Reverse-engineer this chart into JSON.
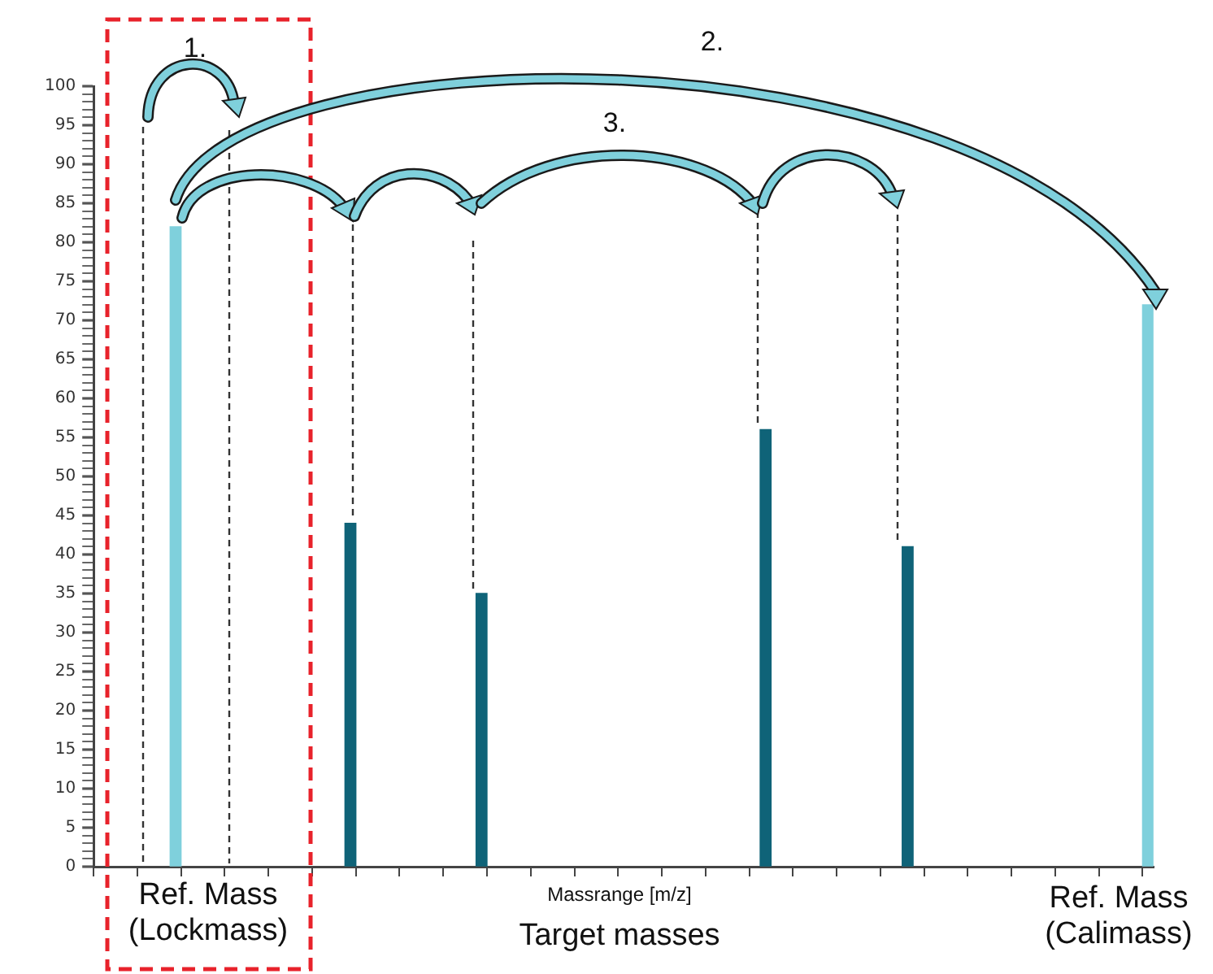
{
  "chart_data": {
    "type": "bar",
    "xlabel": "Massrange [m/z]",
    "categories": [
      null,
      null,
      null,
      null,
      null,
      null,
      null,
      null,
      null,
      null,
      null,
      null,
      null,
      null,
      null,
      null,
      null,
      null,
      null,
      null,
      null,
      null,
      null,
      null,
      null,
      null,
      null,
      null,
      null,
      null,
      null,
      null,
      null,
      null,
      null,
      null,
      null,
      null,
      null,
      null,
      null,
      null,
      null,
      null,
      null,
      null,
      null,
      null,
      null,
      null,
      null,
      null,
      null,
      null,
      null,
      null,
      null,
      null,
      null,
      null,
      null,
      null,
      null,
      null,
      null,
      null,
      null,
      null,
      null,
      null,
      null,
      null,
      null,
      null,
      null,
      null,
      null,
      null,
      null,
      null,
      null,
      null,
      null,
      null,
      null,
      null,
      null,
      null,
      null,
      null,
      null,
      null,
      null,
      null,
      null,
      null,
      null
    ],
    "values": [
      null,
      null,
      null,
      null,
      null,
      null,
      null,
      82,
      null,
      null,
      null,
      null,
      null,
      null,
      null,
      null,
      null,
      null,
      null,
      null,
      null,
      null,
      null,
      44,
      null,
      null,
      null,
      null,
      null,
      null,
      null,
      null,
      null,
      null,
      null,
      35,
      null,
      null,
      null,
      null,
      null,
      null,
      null,
      null,
      null,
      null,
      null,
      null,
      null,
      null,
      null,
      null,
      null,
      null,
      null,
      null,
      null,
      null,
      null,
      null,
      null,
      56,
      null,
      null,
      null,
      null,
      null,
      null,
      null,
      null,
      null,
      null,
      null,
      null,
      41,
      null,
      null,
      null,
      null,
      null,
      null,
      null,
      null,
      null,
      null,
      null,
      null,
      null,
      null,
      null,
      null,
      null,
      null,
      null,
      null,
      null,
      72
    ],
    "colors": [
      null,
      null,
      null,
      null,
      null,
      null,
      null,
      "#7fd0dc",
      null,
      null,
      null,
      null,
      null,
      null,
      null,
      null,
      null,
      null,
      null,
      null,
      null,
      null,
      null,
      "#0f6378",
      null,
      null,
      null,
      null,
      null,
      null,
      null,
      null,
      null,
      null,
      null,
      "#0f6378",
      null,
      null,
      null,
      null,
      null,
      null,
      null,
      null,
      null,
      null,
      null,
      null,
      null,
      null,
      null,
      null,
      null,
      null,
      null,
      null,
      null,
      null,
      null,
      null,
      null,
      "#0f6378",
      null,
      null,
      null,
      null,
      null,
      null,
      null,
      null,
      null,
      null,
      null,
      null,
      "#0f6378",
      null,
      null,
      null,
      null,
      null,
      null,
      null,
      null,
      null,
      null,
      null,
      null,
      null,
      null,
      null,
      null,
      null,
      null,
      null,
      null,
      null,
      "#7fd0dc"
    ],
    "ylim": [
      0,
      100
    ],
    "yticks": [
      0,
      {
        "value": 1,
        "label": null
      },
      {
        "value": 2,
        "label": null
      },
      {
        "value": 3,
        "label": null
      },
      {
        "value": 4,
        "label": null
      },
      5,
      {
        "value": 6,
        "label": null
      },
      {
        "value": 7,
        "label": null
      },
      {
        "value": 8,
        "label": null
      },
      {
        "value": 9,
        "label": null
      },
      10,
      {
        "value": 11,
        "label": null
      },
      {
        "value": 12,
        "label": null
      },
      {
        "value": 13,
        "label": null
      },
      {
        "value": 14,
        "label": null
      },
      15,
      {
        "value": 16,
        "label": null
      },
      {
        "value": 17,
        "label": null
      },
      {
        "value": 18,
        "label": null
      },
      {
        "value": 19,
        "label": null
      },
      20,
      {
        "value": 21,
        "label": null
      },
      {
        "value": 22,
        "label": null
      },
      {
        "value": 23,
        "label": null
      },
      {
        "value": 24,
        "label": null
      },
      25,
      {
        "value": 26,
        "label": null
      },
      {
        "value": 27,
        "label": null
      },
      {
        "value": 28,
        "label": null
      },
      {
        "value": 29,
        "label": null
      },
      30,
      {
        "value": 31,
        "label": null
      },
      {
        "value": 32,
        "label": null
      },
      {
        "value": 33,
        "label": null
      },
      {
        "value": 34,
        "label": null
      },
      35,
      {
        "value": 36,
        "label": null
      },
      {
        "value": 37,
        "label": null
      },
      {
        "value": 38,
        "label": null
      },
      {
        "value": 39,
        "label": null
      },
      40,
      {
        "value": 41,
        "label": null
      },
      {
        "value": 42,
        "label": null
      },
      {
        "value": 43,
        "label": null
      },
      {
        "value": 44,
        "label": null
      },
      45,
      {
        "value": 46,
        "label": null
      },
      {
        "value": 47,
        "label": null
      },
      {
        "value": 48,
        "label": null
      },
      {
        "value": 49,
        "label": null
      },
      50,
      {
        "value": 51,
        "label": null
      },
      {
        "value": 52,
        "label": null
      },
      {
        "value": 53,
        "label": null
      },
      {
        "value": 54,
        "label": null
      },
      55,
      {
        "value": 56,
        "label": null
      },
      {
        "value": 57,
        "label": null
      },
      {
        "value": 58,
        "label": null
      },
      {
        "value": 59,
        "label": null
      },
      60,
      {
        "value": 61,
        "label": null
      },
      {
        "value": 62,
        "label": null
      },
      {
        "value": 63,
        "label": null
      },
      {
        "value": 64,
        "label": null
      },
      65,
      {
        "value": 66,
        "label": null
      },
      {
        "value": 67,
        "label": null
      },
      {
        "value": 68,
        "label": null
      },
      {
        "value": 69,
        "label": null
      },
      70,
      {
        "value": 71,
        "label": null
      },
      {
        "value": 72,
        "label": null
      },
      {
        "value": 73,
        "label": null
      },
      {
        "value": 74,
        "label": null
      },
      75,
      {
        "value": 76,
        "label": null
      },
      {
        "value": 77,
        "label": null
      },
      {
        "value": 78,
        "label": null
      },
      {
        "value": 79,
        "label": null
      },
      80,
      {
        "value": 81,
        "label": null
      },
      {
        "value": 82,
        "label": null
      },
      {
        "value": 83,
        "label": null
      },
      {
        "value": 84,
        "label": null
      },
      85,
      {
        "value": 86,
        "label": null
      },
      {
        "value": 87,
        "label": null
      },
      {
        "value": 88,
        "label": null
      },
      {
        "value": 89,
        "label": null
      },
      90,
      {
        "value": 91,
        "label": null
      },
      {
        "value": 92,
        "label": null
      },
      {
        "value": 93,
        "label": null
      },
      {
        "value": 94,
        "label": null
      },
      95,
      {
        "value": 96,
        "label": null
      },
      {
        "value": 97,
        "label": null
      },
      {
        "value": 98,
        "label": null
      },
      {
        "value": 99,
        "label": null
      },
      100
    ],
    "tick_labels": "y",
    "grid": false,
    "legend": false,
    "annotations": [
      "1.",
      "2.",
      "3.",
      "Ref. Mass (Lockmass)",
      "Target masses",
      "Ref. Mass (Calimass)"
    ]
  }
}
